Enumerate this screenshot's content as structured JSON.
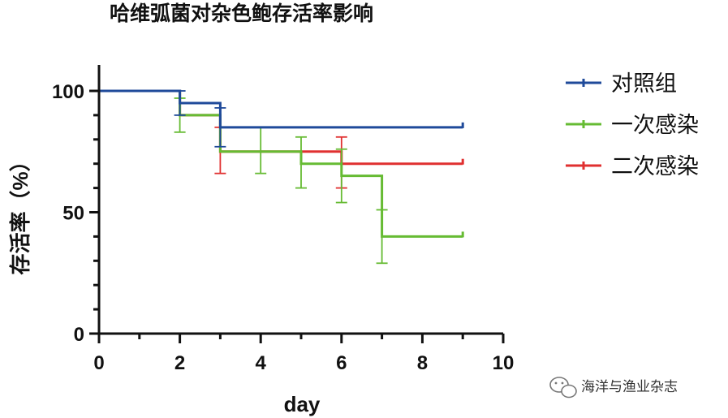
{
  "chart_data": {
    "type": "line",
    "step": true,
    "title": "哈维弧菌对杂色鲍存活率影响",
    "xlabel": "day",
    "ylabel": "存活率（%）",
    "xlim": [
      0,
      10
    ],
    "ylim": [
      0,
      100
    ],
    "xticks": [
      "0",
      "2",
      "4",
      "6",
      "8",
      "10"
    ],
    "yticks": [
      "0",
      "50",
      "100"
    ],
    "legend_position": "right",
    "series": [
      {
        "name": "对照组",
        "color": "#1f4a9a",
        "x": [
          0,
          2,
          3,
          9
        ],
        "y": [
          100,
          95,
          85,
          85
        ],
        "error_bars": [
          {
            "x": 2,
            "low": 90,
            "high": 100
          },
          {
            "x": 3,
            "low": 77,
            "high": 93
          }
        ]
      },
      {
        "name": "一次感染",
        "color": "#66bb33",
        "x": [
          0,
          2,
          3,
          5,
          6,
          7,
          9
        ],
        "y": [
          100,
          90,
          75,
          70,
          65,
          40,
          40
        ],
        "error_bars": [
          {
            "x": 2,
            "low": 83,
            "high": 97
          },
          {
            "x": 4,
            "low": 66,
            "high": 85
          },
          {
            "x": 5,
            "low": 60,
            "high": 81
          },
          {
            "x": 6,
            "low": 54,
            "high": 76
          },
          {
            "x": 7,
            "low": 29,
            "high": 51
          }
        ]
      },
      {
        "name": "二次感染",
        "color": "#e03030",
        "x": [
          0,
          2,
          3,
          6,
          9
        ],
        "y": [
          100,
          90,
          75,
          70,
          70
        ],
        "error_bars": [
          {
            "x": 3,
            "low": 66,
            "high": 85
          },
          {
            "x": 6,
            "low": 60,
            "high": 81
          }
        ]
      }
    ]
  },
  "watermark": {
    "text": "海洋与渔业杂志",
    "icon": "wechat-icon"
  }
}
